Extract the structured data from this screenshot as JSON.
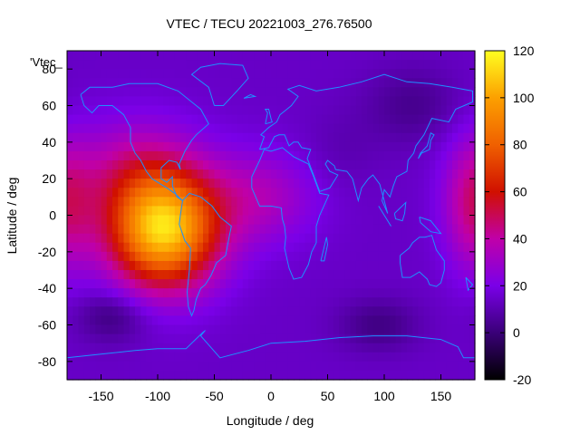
{
  "chart_data": {
    "type": "heatmap",
    "title": "VTEC / TECU 20221003_276.76500",
    "xlabel": "Longitude / deg",
    "ylabel": "Latitude / deg",
    "series_label": "'Vtec_",
    "xlim": [
      -180,
      180
    ],
    "ylim": [
      -90,
      90
    ],
    "xticks": [
      -150,
      -100,
      -50,
      0,
      50,
      100,
      150
    ],
    "yticks": [
      -80,
      -60,
      -40,
      -20,
      0,
      20,
      40,
      60,
      80
    ],
    "colorbar": {
      "range": [
        -20,
        120
      ],
      "ticks": [
        -20,
        0,
        20,
        40,
        60,
        80,
        100,
        120
      ],
      "palette": [
        "#000000",
        "#3a0078",
        "#7a00e8",
        "#c000a8",
        "#d01000",
        "#f06000",
        "#fca000",
        "#ffff20"
      ]
    },
    "field": {
      "background_value": 14,
      "features": [
        {
          "lon": -95,
          "lat": -8,
          "value": 96,
          "sigma_lon": 34,
          "sigma_lat": 22
        },
        {
          "lon": -120,
          "lat": 25,
          "value": 22,
          "sigma_lon": 40,
          "sigma_lat": 20
        },
        {
          "lon": -10,
          "lat": 10,
          "value": 20,
          "sigma_lon": 35,
          "sigma_lat": 18
        },
        {
          "lon": 178,
          "lat": 5,
          "value": 28,
          "sigma_lon": 18,
          "sigma_lat": 25
        },
        {
          "lon": -140,
          "lat": -55,
          "value": -14,
          "sigma_lon": 22,
          "sigma_lat": 10
        },
        {
          "lon": 95,
          "lat": -60,
          "value": -12,
          "sigma_lon": 25,
          "sigma_lat": 10
        },
        {
          "lon": 125,
          "lat": 60,
          "value": -10,
          "sigma_lon": 30,
          "sigma_lat": 15
        },
        {
          "lon": 60,
          "lat": 35,
          "value": -4,
          "sigma_lon": 25,
          "sigma_lat": 15
        }
      ]
    },
    "coastline_color": "#1e90ff"
  }
}
